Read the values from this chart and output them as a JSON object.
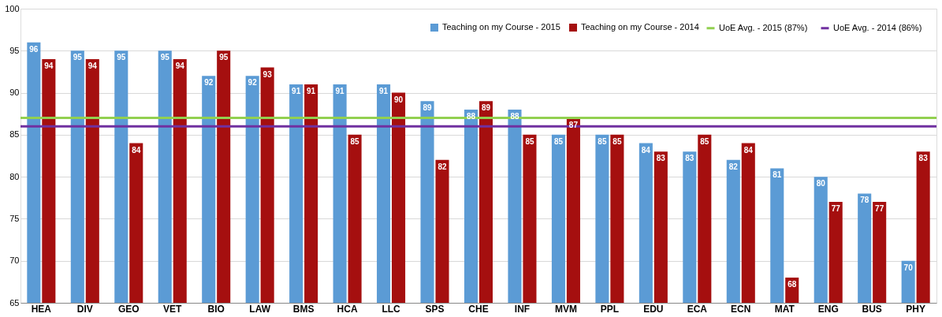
{
  "chart_data": {
    "type": "bar",
    "categories": [
      "HEA",
      "DIV",
      "GEO",
      "VET",
      "BIO",
      "LAW",
      "BMS",
      "HCA",
      "LLC",
      "SPS",
      "CHE",
      "INF",
      "MVM",
      "PPL",
      "EDU",
      "ECA",
      "ECN",
      "MAT",
      "ENG",
      "BUS",
      "PHY"
    ],
    "series": [
      {
        "name": "Teaching on my Course - 2015",
        "color": "#5b9bd5",
        "values": [
          96,
          95,
          95,
          95,
          92,
          92,
          91,
          91,
          91,
          89,
          88,
          88,
          85,
          85,
          84,
          83,
          82,
          81,
          80,
          78,
          70
        ]
      },
      {
        "name": "Teaching on my Course - 2014",
        "color": "#a50f0f",
        "values": [
          94,
          94,
          84,
          94,
          95,
          93,
          91,
          85,
          90,
          82,
          89,
          85,
          87,
          85,
          83,
          85,
          84,
          68,
          77,
          77,
          83
        ]
      }
    ],
    "ref_lines": [
      {
        "axis": "y",
        "value": 87,
        "label": "UoE Avg. - 2015 (87%)",
        "color": "#92d050"
      },
      {
        "axis": "y",
        "value": 86,
        "label": "UoE Avg. - 2014 (86%)",
        "color": "#7030a0"
      }
    ],
    "ylim": [
      65,
      100
    ],
    "yticks": [
      65,
      70,
      75,
      80,
      85,
      90,
      95,
      100
    ],
    "grid": "y",
    "legend": "top right",
    "data_labels": true
  }
}
